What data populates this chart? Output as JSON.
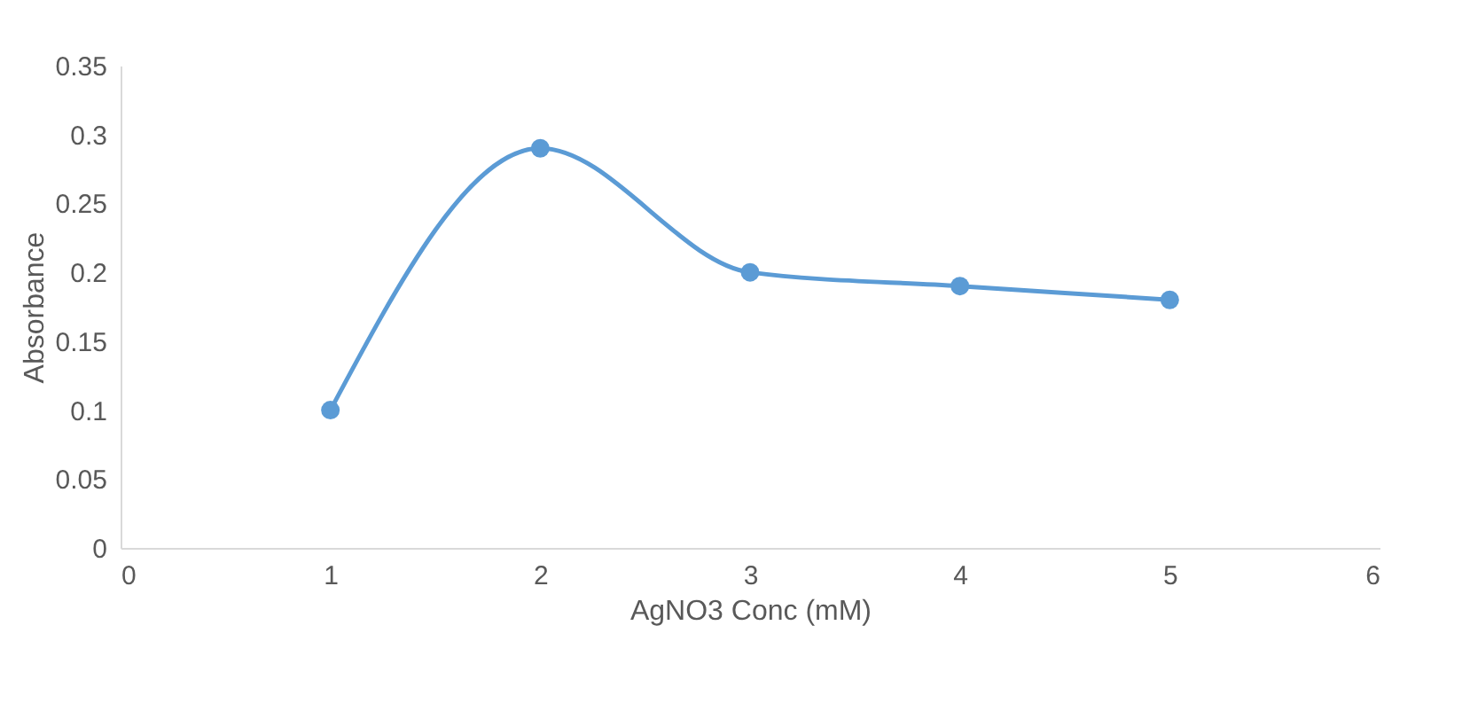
{
  "chart_data": {
    "type": "line",
    "xlabel": "AgNO3 Conc (mM)",
    "ylabel": "Absorbance",
    "x": [
      1,
      2,
      3,
      4,
      5
    ],
    "series": [
      {
        "color": "#5b9bd5",
        "values": [
          0.1,
          0.29,
          0.2,
          0.19,
          0.18
        ]
      }
    ],
    "xlim": [
      0,
      6
    ],
    "xticks": [
      0,
      1,
      2,
      3,
      4,
      5,
      6
    ],
    "ylim": [
      0,
      0.35
    ],
    "yticks": [
      0,
      0.05,
      0.1,
      0.15,
      0.2,
      0.25,
      0.3,
      0.35
    ],
    "grid": false,
    "marker": "circle",
    "line_style": "solid"
  }
}
